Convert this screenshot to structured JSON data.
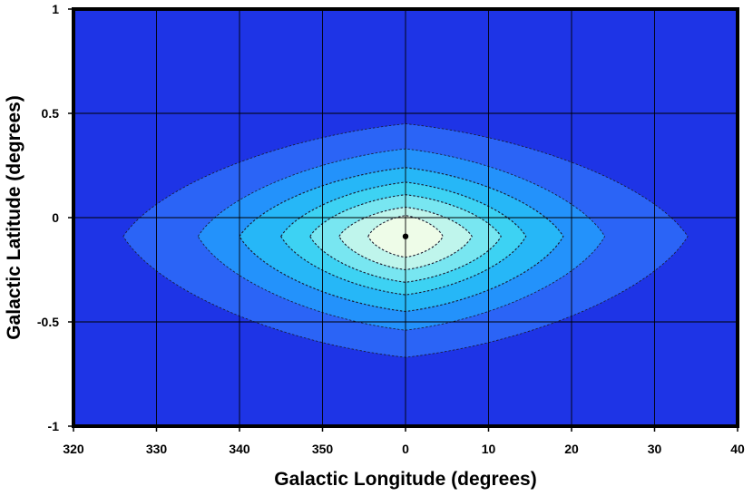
{
  "chart_data": {
    "type": "contour",
    "title": "",
    "xlabel": "Galactic Longitude (degrees)",
    "ylabel": "Galactic Latitude (degrees)",
    "x_ticks": [
      320,
      330,
      340,
      350,
      0,
      10,
      20,
      30,
      40
    ],
    "x_tick_labels": [
      "320",
      "330",
      "340",
      "350",
      "0",
      "10",
      "20",
      "30",
      "40"
    ],
    "x_range": [
      -40,
      40
    ],
    "x_axis_note": "longitude wraps: 320..350 correspond to -40..-10",
    "y_ticks": [
      1,
      0.5,
      0,
      -0.5,
      -1
    ],
    "y_tick_labels": [
      "1",
      "0.5",
      "0",
      "-0.5",
      "-1"
    ],
    "ylim": [
      -1,
      1
    ],
    "grid": true,
    "background_color": "#1e34e6",
    "peak": {
      "x": 0,
      "y": -0.09
    },
    "levels": [
      {
        "color": "#2b64f6",
        "x_extent": [
          -34,
          34
        ],
        "y_extent": [
          -0.67,
          0.45
        ]
      },
      {
        "color": "#2392fb",
        "x_extent": [
          -25,
          24
        ],
        "y_extent": [
          -0.54,
          0.33
        ]
      },
      {
        "color": "#26b7f7",
        "x_extent": [
          -20,
          19
        ],
        "y_extent": [
          -0.45,
          0.24
        ]
      },
      {
        "color": "#3dd2f3",
        "x_extent": [
          -15,
          14.5
        ],
        "y_extent": [
          -0.37,
          0.17
        ]
      },
      {
        "color": "#78e6f1",
        "x_extent": [
          -11.5,
          11.5
        ],
        "y_extent": [
          -0.31,
          0.11
        ]
      },
      {
        "color": "#bff5ec",
        "x_extent": [
          -8,
          8
        ],
        "y_extent": [
          -0.25,
          0.05
        ]
      },
      {
        "color": "#eefce8",
        "x_extent": [
          -4.5,
          4.5
        ],
        "y_extent": [
          -0.19,
          0.01
        ]
      }
    ]
  }
}
